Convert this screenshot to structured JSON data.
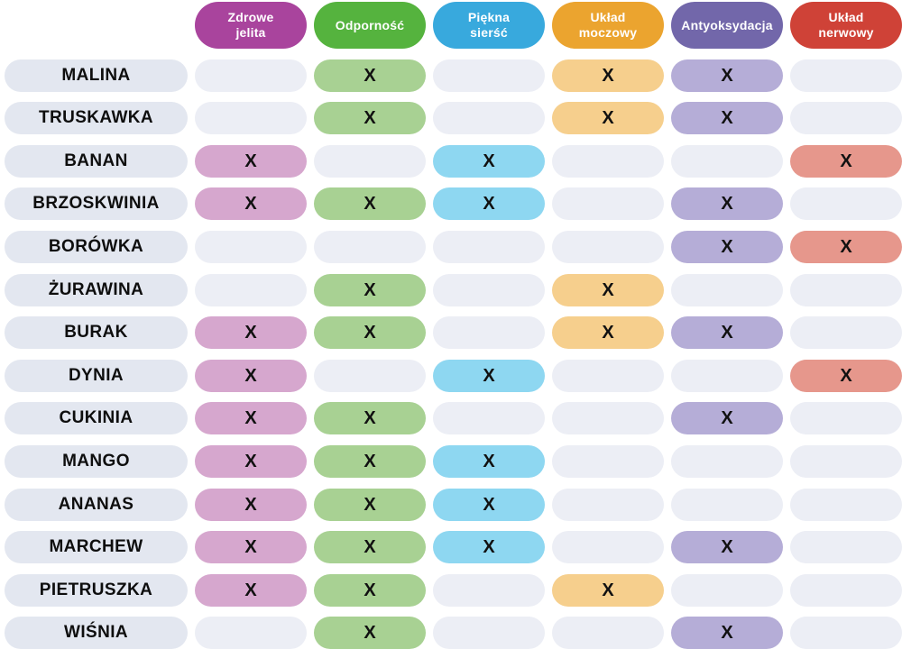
{
  "chart_data": {
    "type": "table",
    "mark_symbol": "X",
    "columns": [
      {
        "id": "zdrowe-jelita",
        "label": "Zdrowe jelita",
        "lines": [
          "Zdrowe",
          "jelita"
        ],
        "color": "#a9449d",
        "tint": "#d6a7ce"
      },
      {
        "id": "odpornosc",
        "label": "Odporność",
        "lines": [
          "Odporność"
        ],
        "color": "#55b33e",
        "tint": "#a8d193"
      },
      {
        "id": "piekna-siersc",
        "label": "Piękna sierść",
        "lines": [
          "Piękna",
          "sierść"
        ],
        "color": "#38a9dd",
        "tint": "#8ed7f1"
      },
      {
        "id": "uklad-moczowy",
        "label": "Układ moczowy",
        "lines": [
          "Układ",
          "moczowy"
        ],
        "color": "#eba42f",
        "tint": "#f6cf8d"
      },
      {
        "id": "antyoksydacja",
        "label": "Antyoksydacja",
        "lines": [
          "Antyoksydacja"
        ],
        "color": "#7267aa",
        "tint": "#b5add7"
      },
      {
        "id": "uklad-nerwowy",
        "label": "Układ nerwowy",
        "lines": [
          "Układ",
          "nerwowy"
        ],
        "color": "#cf4237",
        "tint": "#e6978c"
      }
    ],
    "rows": [
      {
        "label": "MALINA",
        "marks": [
          0,
          1,
          0,
          1,
          1,
          0
        ]
      },
      {
        "label": "TRUSKAWKA",
        "marks": [
          0,
          1,
          0,
          1,
          1,
          0
        ]
      },
      {
        "label": "BANAN",
        "marks": [
          1,
          0,
          1,
          0,
          0,
          1
        ]
      },
      {
        "label": "BRZOSKWINIA",
        "marks": [
          1,
          1,
          1,
          0,
          1,
          0
        ]
      },
      {
        "label": "BORÓWKA",
        "marks": [
          0,
          0,
          0,
          0,
          1,
          1
        ]
      },
      {
        "label": "ŻURAWINA",
        "marks": [
          0,
          1,
          0,
          1,
          0,
          0
        ]
      },
      {
        "label": "BURAK",
        "marks": [
          1,
          1,
          0,
          1,
          1,
          0
        ]
      },
      {
        "label": "DYNIA",
        "marks": [
          1,
          0,
          1,
          0,
          0,
          1
        ]
      },
      {
        "label": "CUKINIA",
        "marks": [
          1,
          1,
          0,
          0,
          1,
          0
        ]
      },
      {
        "label": "MANGO",
        "marks": [
          1,
          1,
          1,
          0,
          0,
          0
        ]
      },
      {
        "label": "ANANAS",
        "marks": [
          1,
          1,
          1,
          0,
          0,
          0
        ]
      },
      {
        "label": "MARCHEW",
        "marks": [
          1,
          1,
          1,
          0,
          1,
          0
        ]
      },
      {
        "label": "PIETRUSZKA",
        "marks": [
          1,
          1,
          0,
          1,
          0,
          0
        ]
      },
      {
        "label": "WIŚNIA",
        "marks": [
          0,
          1,
          0,
          0,
          1,
          0
        ]
      }
    ]
  },
  "colors": {
    "background": "#ffffff",
    "row_label_bg": "#e3e7f0",
    "empty_cell_bg": "#eceef5",
    "header_text": "#ffffff",
    "row_label_text": "#0e0e0e",
    "mark_text": "#111111"
  }
}
